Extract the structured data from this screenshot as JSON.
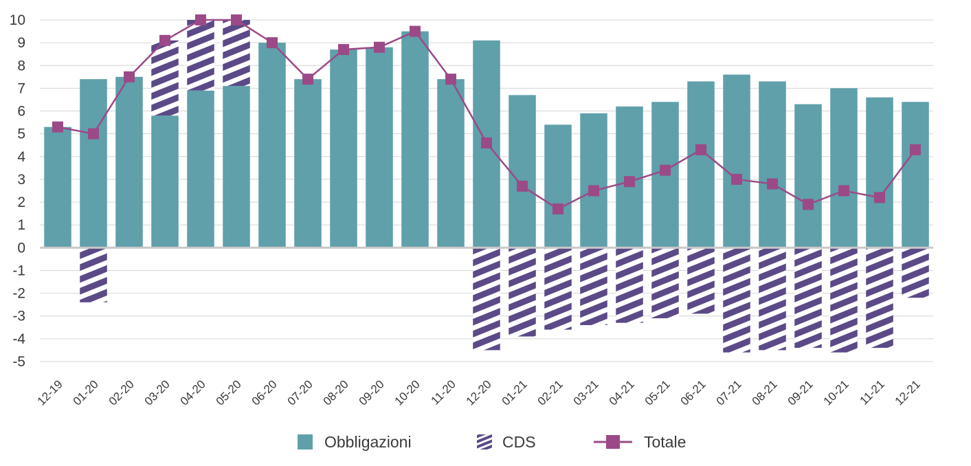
{
  "chart_data": {
    "type": "bar",
    "categories": [
      "12-19",
      "01-20",
      "02-20",
      "03-20",
      "04-20",
      "05-20",
      "06-20",
      "07-20",
      "08-20",
      "09-20",
      "10-20",
      "11-20",
      "12-20",
      "01-21",
      "02-21",
      "03-21",
      "04-21",
      "05-21",
      "06-21",
      "07-21",
      "08-21",
      "09-21",
      "10-21",
      "11-21",
      "12-21"
    ],
    "series": [
      {
        "name": "Obbligazioni",
        "type": "bar",
        "stack": "positive",
        "color": "#5fa0aa",
        "values": [
          5.3,
          7.4,
          7.5,
          5.8,
          6.9,
          7.1,
          9.0,
          7.4,
          8.7,
          8.8,
          9.5,
          7.4,
          9.1,
          6.7,
          5.4,
          5.9,
          6.2,
          6.4,
          7.3,
          7.6,
          7.3,
          6.3,
          7.0,
          6.6,
          6.4
        ]
      },
      {
        "name": "CDS",
        "type": "bar",
        "pattern": "hatched",
        "color": "#5b4a87",
        "values": [
          0,
          -2.4,
          0,
          3.3,
          3.1,
          2.9,
          0,
          0,
          0,
          0,
          0,
          0,
          -4.5,
          -3.9,
          -3.6,
          -3.4,
          -3.3,
          -3.1,
          -2.9,
          -4.6,
          -4.5,
          -4.4,
          -4.6,
          -4.4,
          -2.2
        ]
      },
      {
        "name": "Totale",
        "type": "line",
        "marker": "square",
        "color": "#9b4a87",
        "values": [
          5.3,
          5.0,
          7.5,
          9.1,
          10.0,
          10.0,
          9.0,
          7.4,
          8.7,
          8.8,
          9.5,
          7.4,
          4.6,
          2.7,
          1.7,
          2.5,
          2.9,
          3.4,
          4.3,
          3.0,
          2.8,
          1.9,
          2.5,
          2.2,
          4.3
        ]
      }
    ],
    "yticks": [
      10,
      9,
      8,
      7,
      6,
      5,
      4,
      3,
      2,
      1,
      0,
      -1,
      -2,
      -3,
      -4,
      -5
    ],
    "ylim": [
      -5,
      10
    ],
    "grid": true,
    "legend_position": "bottom",
    "title": "",
    "xlabel": "",
    "ylabel": ""
  },
  "legend": {
    "items": [
      {
        "label": "Obbligazioni",
        "icon": "teal-square"
      },
      {
        "label": "CDS",
        "icon": "hatched-square"
      },
      {
        "label": "Totale",
        "icon": "line-square-marker"
      }
    ]
  }
}
